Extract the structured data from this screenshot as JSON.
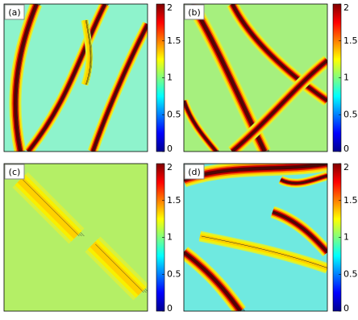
{
  "chart_data": [
    {
      "type": "heatmap",
      "title": "(a)",
      "colormap": "jet",
      "clim": [
        0,
        2
      ],
      "cticks": [
        0,
        0.5,
        1,
        1.5,
        2
      ]
    },
    {
      "type": "heatmap",
      "title": "(b)",
      "colormap": "jet",
      "clim": [
        0,
        2
      ],
      "cticks": [
        0,
        0.5,
        1,
        1.5,
        2
      ]
    },
    {
      "type": "heatmap",
      "title": "(c)",
      "colormap": "jet",
      "clim": [
        0,
        2
      ],
      "cticks": [
        0,
        0.5,
        1,
        1.5,
        2
      ]
    },
    {
      "type": "heatmap",
      "title": "(d)",
      "colormap": "jet",
      "clim": [
        0,
        2
      ],
      "cticks": [
        0,
        0.5,
        1,
        1.5,
        2
      ]
    }
  ]
}
